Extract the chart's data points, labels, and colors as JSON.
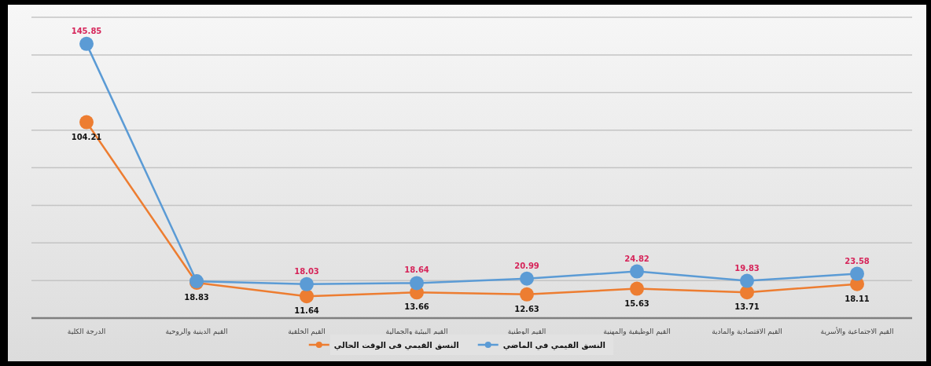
{
  "chart_data": {
    "type": "line",
    "categories": [
      "الدرجة الكلية",
      "القيم الدينية والروحية",
      "القيم الخلقية",
      "القيم البيئية والجمالية",
      "القيم الوطنية",
      "القيم الوظيفية والمهنية",
      "القيم الاقتصادية والمادية",
      "القيم الاجتماعية والأسرية"
    ],
    "series": [
      {
        "name": "النسق القيمي في الماضي",
        "color": "#5b9bd5",
        "values": [
          145.85,
          19.6,
          18.03,
          18.64,
          20.99,
          24.82,
          19.83,
          23.58
        ],
        "value_labels": [
          "145.85",
          null,
          "18.03",
          "18.64",
          "20.99",
          "24.82",
          "19.83",
          "23.58"
        ]
      },
      {
        "name": "النسق القيمي فى الوقت الحالي",
        "color": "#ed7d31",
        "values": [
          104.21,
          18.83,
          11.64,
          13.66,
          12.63,
          15.63,
          13.71,
          18.11
        ],
        "value_labels": [
          "104.21",
          "18.83",
          "11.64",
          "13.66",
          "12.63",
          "15.63",
          "13.71",
          "18.11"
        ]
      }
    ],
    "ylim": [
      0,
      160
    ],
    "yticks": [
      {
        "value": 0,
        "label": null
      },
      {
        "value": 20,
        "label": null
      },
      {
        "value": 40,
        "label": null
      },
      {
        "value": 60,
        "label": null
      },
      {
        "value": 80,
        "label": null
      },
      {
        "value": 100,
        "label": null
      },
      {
        "value": 120,
        "label": null
      },
      {
        "value": 140,
        "label": null
      },
      {
        "value": 160,
        "label": null
      }
    ],
    "tick_labels": "x",
    "grid": "y",
    "legend": "bottom",
    "marker": "circle",
    "line_style": "solid"
  }
}
